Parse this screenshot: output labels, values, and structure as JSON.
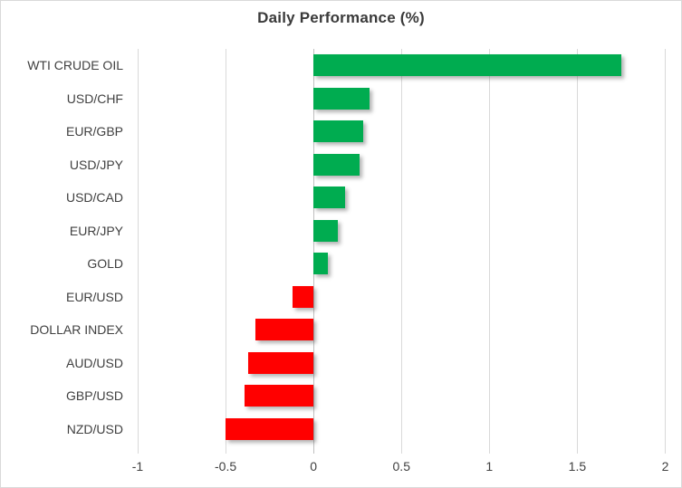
{
  "chart_data": {
    "type": "bar",
    "orientation": "horizontal",
    "title": "Daily Performance (%)",
    "categories": [
      "WTI CRUDE OIL",
      "USD/CHF",
      "EUR/GBP",
      "USD/JPY",
      "USD/CAD",
      "EUR/JPY",
      "GOLD",
      "EUR/USD",
      "DOLLAR INDEX",
      "AUD/USD",
      "GBP/USD",
      "NZD/USD"
    ],
    "values": [
      1.75,
      0.32,
      0.28,
      0.26,
      0.18,
      0.14,
      0.08,
      -0.12,
      -0.33,
      -0.37,
      -0.39,
      -0.5
    ],
    "xlabel": "",
    "ylabel": "",
    "xlim": [
      -1,
      2
    ],
    "xticks": [
      -1,
      -0.5,
      0,
      0.5,
      1,
      1.5,
      2
    ],
    "xtick_labels": [
      "-1",
      "-0.5",
      "0",
      "0.5",
      "1",
      "1.5",
      "2"
    ],
    "grid": true,
    "legend": false,
    "colors": {
      "positive": "#00AC50",
      "negative": "#FF0000",
      "gridline": "#D9D9D9",
      "zero_axis": "#BFBFBF",
      "text": "#404040",
      "title_text": "#3A3A3A",
      "frame_border": "#D9D9D9",
      "background": "#FFFFFF"
    }
  }
}
